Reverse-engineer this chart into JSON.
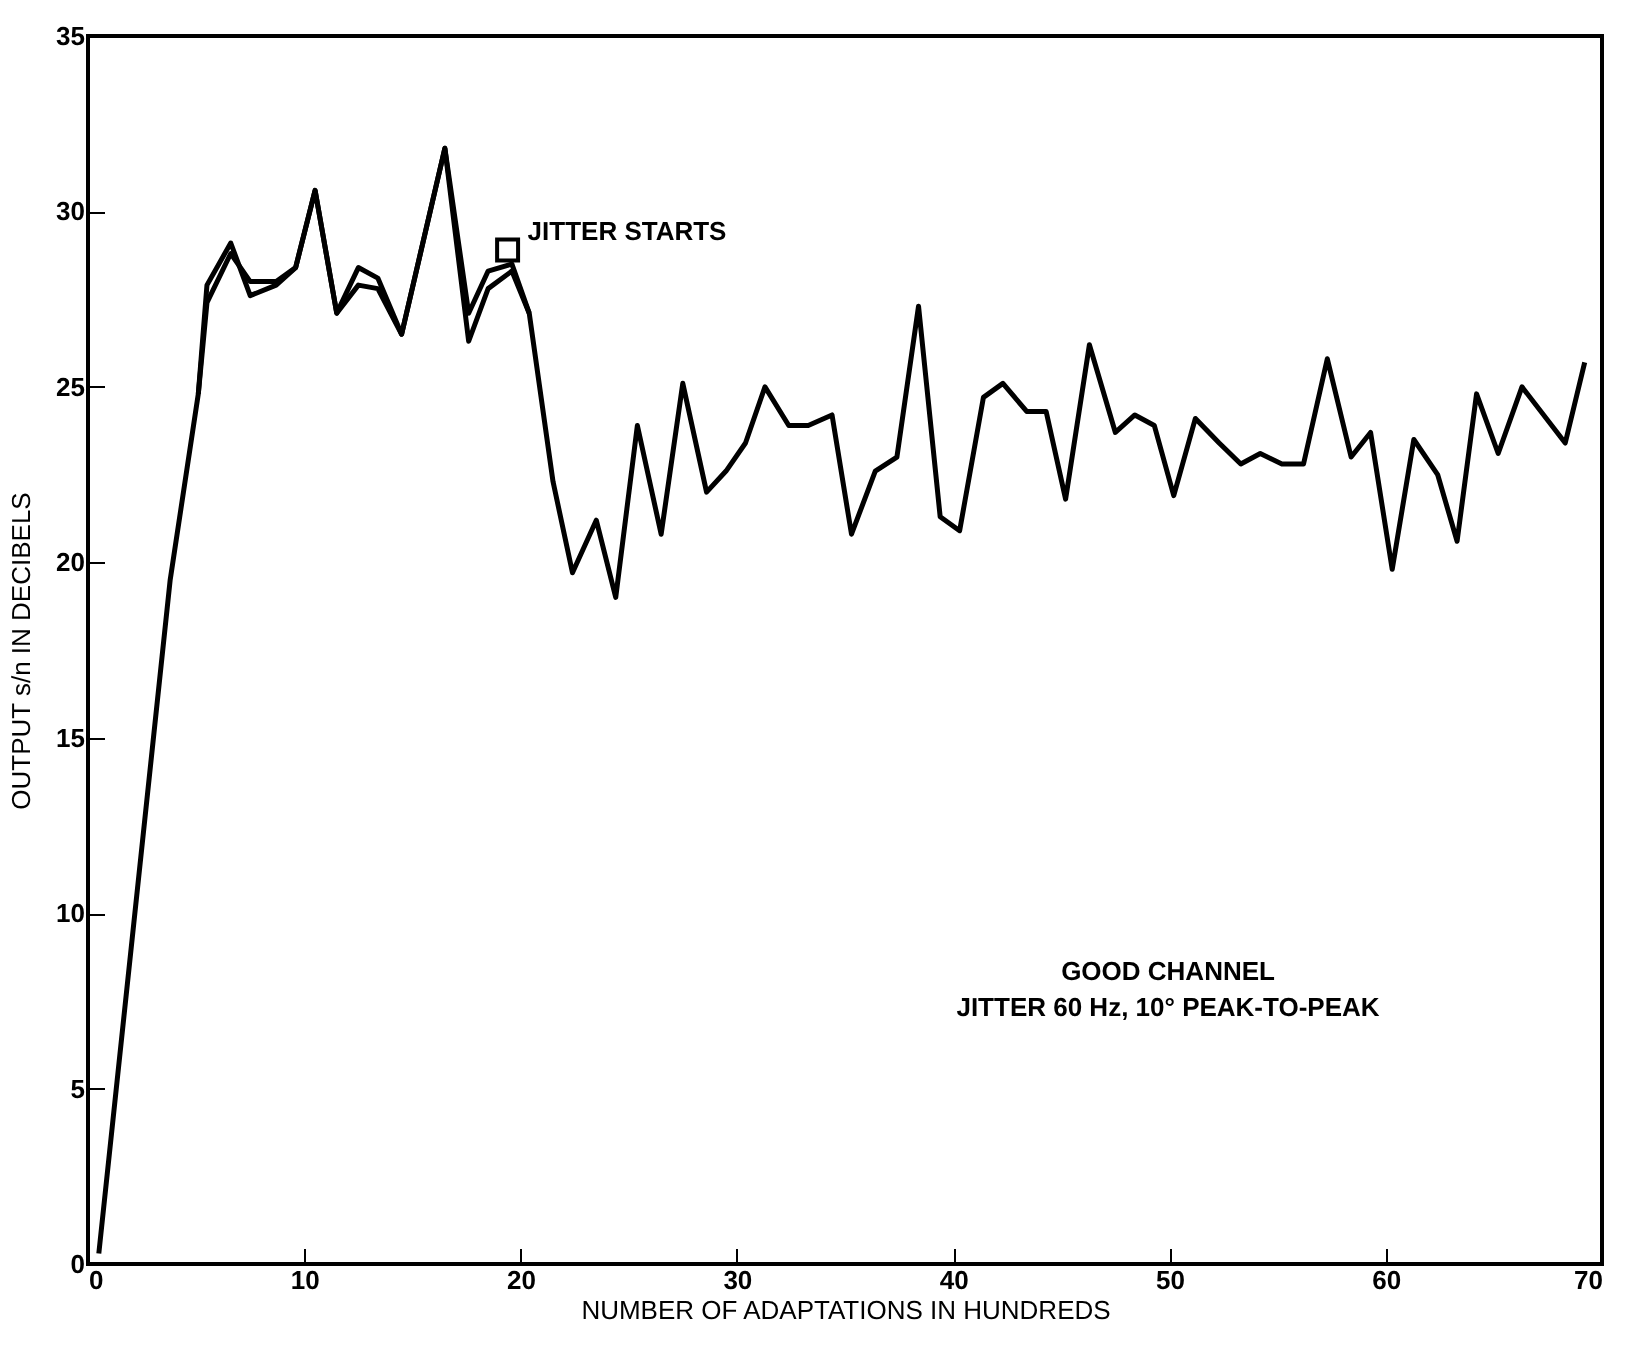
{
  "chart_data": {
    "type": "line",
    "xlabel": "NUMBER OF ADAPTATIONS IN HUNDREDS",
    "ylabel": "OUTPUT s/n IN DECIBELS",
    "xlim": [
      0,
      70
    ],
    "xticks": [
      0,
      10,
      20,
      30,
      40,
      50,
      60,
      70
    ],
    "ylim": [
      0,
      35
    ],
    "yticks": [
      0,
      5,
      10,
      15,
      20,
      25,
      30,
      35
    ],
    "line_style": "solid",
    "series": [
      {
        "color": "#000000",
        "x": [
          0.5,
          3.8,
          5.1,
          5.5,
          6.6,
          7.5,
          8.7,
          9.6,
          10.5,
          11.5,
          12.5,
          13.4,
          14.5,
          16.5,
          17.6,
          18.5,
          19.6,
          20.4,
          21.5,
          22.4,
          23.5,
          24.4,
          25.4,
          26.5,
          27.5,
          28.6,
          29.5,
          30.4,
          31.3,
          32.4,
          33.3,
          34.4,
          35.3,
          36.4,
          37.4,
          38.4,
          39.4,
          40.3,
          41.4,
          42.3,
          43.4,
          44.3,
          45.2,
          46.3,
          47.5,
          48.4,
          49.3,
          50.2,
          51.2,
          52.3,
          53.3,
          54.2,
          55.2,
          56.2,
          57.3,
          58.4,
          59.3,
          60.3,
          61.3,
          62.4,
          63.3,
          64.2,
          65.2,
          66.3,
          68.3,
          69.2
        ],
        "values": [
          0.3,
          19.5,
          24.8,
          27.9,
          29.1,
          27.6,
          27.9,
          28.4,
          30.6,
          27.1,
          27.9,
          27.8,
          26.5,
          31.8,
          26.3,
          27.8,
          28.3,
          27.1,
          22.3,
          19.7,
          21.2,
          19.0,
          23.9,
          20.8,
          25.1,
          22.0,
          22.6,
          23.4,
          25.0,
          23.9,
          23.9,
          24.2,
          20.8,
          22.6,
          23.0,
          27.3,
          21.3,
          20.9,
          24.7,
          25.1,
          24.3,
          24.3,
          21.8,
          26.2,
          23.7,
          24.2,
          23.9,
          21.9,
          24.1,
          23.4,
          22.8,
          23.1,
          22.8,
          22.8,
          25.8,
          23.0,
          23.7,
          19.8,
          23.5,
          22.5,
          20.6,
          24.8,
          23.1,
          25.0,
          23.4,
          25.7
        ]
      },
      {
        "color": "#000000",
        "x": [
          5.1,
          5.5,
          6.6,
          7.5,
          8.7,
          9.6,
          10.5,
          11.5,
          12.5,
          13.4,
          14.5,
          16.5,
          17.6,
          18.5,
          19.6,
          20.4
        ],
        "values": [
          24.8,
          27.4,
          28.8,
          28.0,
          28.0,
          28.4,
          30.6,
          27.1,
          28.4,
          28.1,
          26.5,
          31.8,
          27.1,
          28.3,
          28.5,
          27.1
        ]
      },
      {
        "type": "scatter",
        "marker": "square",
        "color": "#000000",
        "x": [
          19.4
        ],
        "values": [
          28.9
        ]
      }
    ],
    "annotations": [
      {
        "text": "JITTER STARTS",
        "x": 19.4,
        "y": 28.9
      },
      "GOOD CHANNEL",
      "JITTER 60 Hz, 10° PEAK-TO-PEAK"
    ]
  }
}
